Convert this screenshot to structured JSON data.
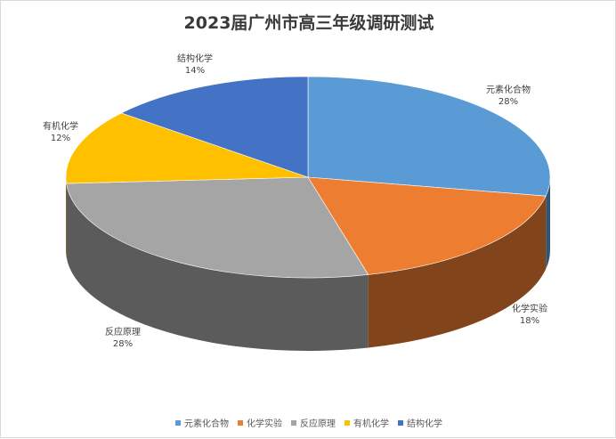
{
  "chart_data": {
    "type": "pie",
    "style": "3d",
    "title": "2023届广州市高三年级调研测试",
    "categories": [
      "元素化合物",
      "化学实验",
      "反应原理",
      "有机化学",
      "结构化学"
    ],
    "values": [
      28,
      18,
      28,
      12,
      14
    ],
    "value_labels": [
      "28%",
      "18%",
      "28%",
      "12%",
      "14%"
    ],
    "colors": [
      "#5b9bd5",
      "#ed7d31",
      "#a5a5a5",
      "#ffc000",
      "#4472c4"
    ],
    "legend_position": "bottom"
  }
}
